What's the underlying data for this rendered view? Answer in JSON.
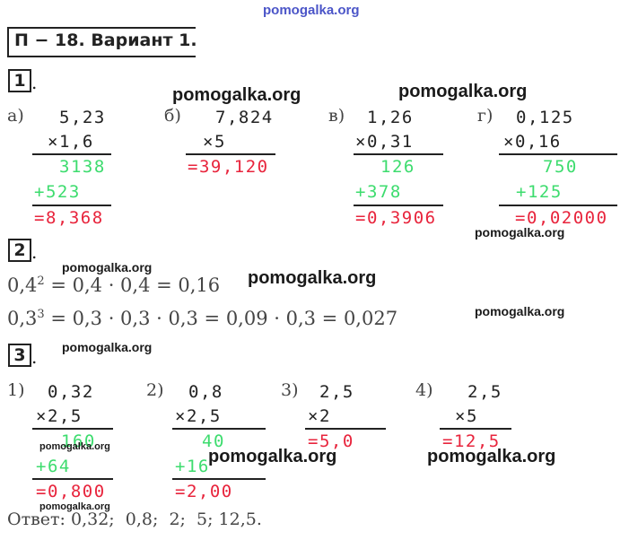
{
  "watermark": "pomogalka.org",
  "header": {
    "title": "П − 18. Вариант 1."
  },
  "sections": {
    "s1": {
      "num": "1",
      "dot": "."
    },
    "s2": {
      "num": "2",
      "dot": "."
    },
    "s3": {
      "num": "3",
      "dot": "."
    }
  },
  "task1": {
    "a": {
      "label": "а)",
      "op1": "5,23",
      "op2": "×1,6",
      "p1": "3138",
      "p2": "+523",
      "result": "=8,368"
    },
    "b": {
      "label": "б)",
      "op1": "7,824",
      "op2": "×5",
      "result": "=39,120"
    },
    "v": {
      "label": "в)",
      "op1": "1,26",
      "op2": "×0,31",
      "p1": "126",
      "p2": "+378",
      "result": "=0,3906"
    },
    "g": {
      "label": "г)",
      "op1": "0,125",
      "op2": "×0,16",
      "p1": "750",
      "p2": "+125",
      "result": "=0,02000"
    }
  },
  "task2": {
    "line1": {
      "base": "0,4",
      "exp": "2",
      "rest": " = 0,4 · 0,4 = 0,16"
    },
    "line2": {
      "base": "0,3",
      "exp": "3",
      "rest": " = 0,3 · 0,3 · 0,3 = 0,09 · 0,3 = 0,027"
    }
  },
  "task3": {
    "i1": {
      "label": "1)",
      "op1": "0,32",
      "op2": "×2,5",
      "p1": "160",
      "p2": "+64",
      "result": "=0,800"
    },
    "i2": {
      "label": "2)",
      "op1": "0,8",
      "op2": "×2,5",
      "p1": "40",
      "p2": "+16",
      "result": "=2,00"
    },
    "i3": {
      "label": "3)",
      "op1": "2,5",
      "op2": "×2",
      "result": "=5,0"
    },
    "i4": {
      "label": "4)",
      "op1": "2,5",
      "op2": "×5",
      "result": "=12,5"
    }
  },
  "answer": "Ответ: 0,32;  0,8;  2;  5; 12,5.",
  "colors": {
    "partial": "#3ddc6e",
    "result": "#e8243c",
    "text": "#222222",
    "watermark_top": "#4b55c8"
  }
}
